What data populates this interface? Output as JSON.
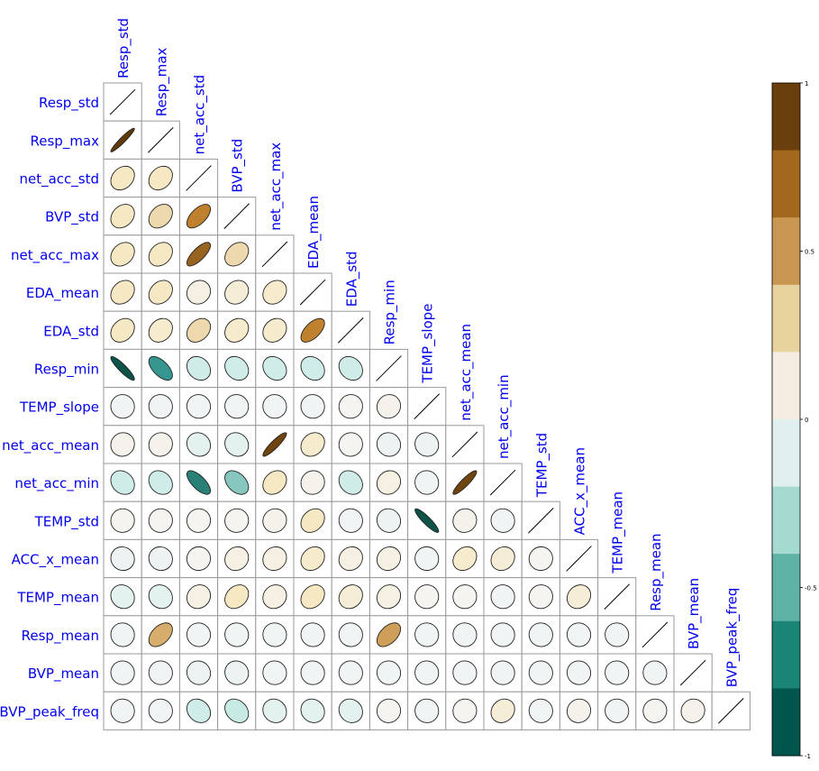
{
  "chart_data": {
    "type": "heatmap",
    "variables": [
      "Resp_std",
      "Resp_max",
      "net_acc_std",
      "BVP_std",
      "net_acc_max",
      "EDA_mean",
      "EDA_std",
      "Resp_min",
      "TEMP_slope",
      "net_acc_mean",
      "net_acc_min",
      "TEMP_std",
      "ACC_x_mean",
      "TEMP_mean",
      "Resp_mean",
      "BVP_mean",
      "BVP_peak_freq"
    ],
    "correlations_lower": [
      [],
      [
        0.95
      ],
      [
        0.25,
        0.25
      ],
      [
        0.25,
        0.3,
        0.6
      ],
      [
        0.25,
        0.25,
        0.75,
        0.3
      ],
      [
        0.25,
        0.25,
        0.1,
        0.15,
        0.2
      ],
      [
        0.25,
        0.2,
        0.3,
        0.2,
        0.2,
        0.6
      ],
      [
        -0.9,
        -0.6,
        -0.2,
        -0.2,
        -0.2,
        -0.2,
        -0.2
      ],
      [
        -0.02,
        -0.02,
        -0.02,
        -0.02,
        -0.02,
        -0.02,
        0.02,
        0.05
      ],
      [
        0.05,
        0.05,
        -0.1,
        -0.1,
        0.9,
        0.2,
        0.02,
        -0.05,
        -0.05
      ],
      [
        -0.2,
        -0.2,
        -0.7,
        -0.4,
        0.25,
        0.05,
        -0.2,
        0.1,
        -0.02,
        0.9
      ],
      [
        0.02,
        0.02,
        0.02,
        0.02,
        0.05,
        0.25,
        -0.02,
        -0.05,
        -0.9,
        0.05,
        -0.02
      ],
      [
        -0.05,
        -0.05,
        0.02,
        0.1,
        0.1,
        0.2,
        0.1,
        0.1,
        -0.02,
        0.2,
        0.15,
        0.02
      ],
      [
        -0.1,
        -0.1,
        0.1,
        0.25,
        0.1,
        0.25,
        0.15,
        0.1,
        0.02,
        0.02,
        -0.02,
        0.02,
        0.15
      ],
      [
        -0.02,
        0.45,
        -0.02,
        -0.02,
        -0.02,
        -0.02,
        -0.02,
        0.5,
        -0.02,
        -0.02,
        -0.02,
        -0.02,
        -0.02,
        -0.02
      ],
      [
        -0.02,
        -0.02,
        -0.05,
        -0.05,
        -0.02,
        -0.02,
        -0.02,
        -0.02,
        -0.02,
        -0.02,
        -0.02,
        -0.02,
        -0.02,
        -0.02,
        -0.02
      ],
      [
        -0.02,
        -0.02,
        -0.2,
        -0.25,
        -0.1,
        -0.1,
        -0.1,
        0.02,
        -0.02,
        0.02,
        0.15,
        -0.02,
        0.05,
        -0.02,
        0.02,
        0.05
      ]
    ],
    "colorbar": {
      "ticks": [
        1,
        0.5,
        0,
        -0.5,
        -1
      ],
      "tick_labels": [
        "1",
        "0.5",
        "0",
        "-0.5",
        "-1"
      ],
      "colors_top_to_bottom": [
        "#6b3f0b",
        "#a3671e",
        "#c99752",
        "#e8d39e",
        "#f4ede0",
        "#dff0ee",
        "#a5dad0",
        "#5fb3a6",
        "#1a8476",
        "#00564c"
      ]
    },
    "diverging_palette": {
      "neg_strong": "#003c30",
      "neg_mid": "#35978f",
      "neg_light": "#c7eae5",
      "neutral": "#f5f5f5",
      "pos_light": "#f6e8c3",
      "pos_mid": "#bf812d",
      "pos_strong": "#543005"
    },
    "label_color": "#0000ee",
    "layout": "lower-triangle with diagonal lines; labels on left and above diagonal"
  }
}
